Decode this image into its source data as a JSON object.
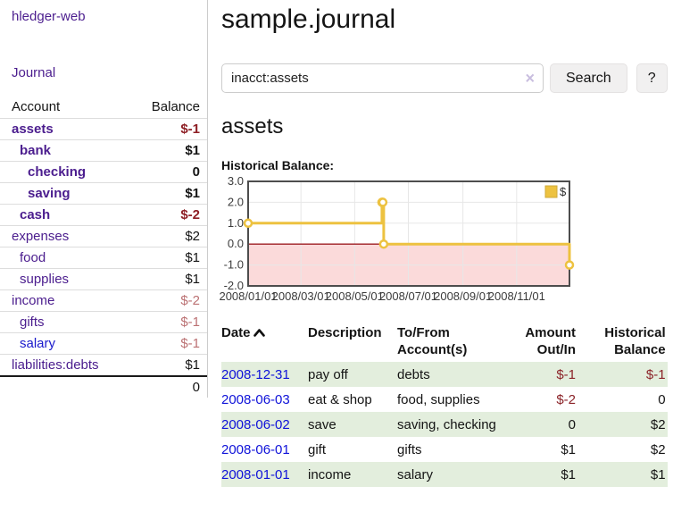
{
  "app_title": "hledger-web",
  "sidebar": {
    "journal_link": "Journal",
    "accounts": {
      "headers": {
        "account": "Account",
        "balance": "Balance"
      },
      "rows": [
        {
          "name": "assets",
          "balance": "$-1",
          "level": 1,
          "bold": true,
          "neg": "strong"
        },
        {
          "name": "bank",
          "balance": "$1",
          "level": 2,
          "bold": true,
          "neg": "none"
        },
        {
          "name": "checking",
          "balance": "0",
          "level": 3,
          "bold": true,
          "neg": "none"
        },
        {
          "name": "saving",
          "balance": "$1",
          "level": 3,
          "bold": true,
          "neg": "none"
        },
        {
          "name": "cash",
          "balance": "$-2",
          "level": 2,
          "bold": true,
          "neg": "strong"
        },
        {
          "name": "expenses",
          "balance": "$2",
          "level": 1,
          "bold": false,
          "neg": "none"
        },
        {
          "name": "food",
          "balance": "$1",
          "level": 2,
          "bold": false,
          "neg": "none"
        },
        {
          "name": "supplies",
          "balance": "$1",
          "level": 2,
          "bold": false,
          "neg": "none"
        },
        {
          "name": "income",
          "balance": "$-2",
          "level": 1,
          "bold": false,
          "neg": "dim"
        },
        {
          "name": "gifts",
          "balance": "$-1",
          "level": 2,
          "bold": false,
          "neg": "dim"
        },
        {
          "name": "salary",
          "balance": "$-1",
          "level": 2,
          "bold": false,
          "neg": "dim",
          "unvisited": true
        },
        {
          "name": "liabilities:debts",
          "balance": "$1",
          "level": 1,
          "bold": false,
          "neg": "none"
        }
      ],
      "total": "0"
    }
  },
  "main": {
    "title": "sample.journal",
    "search": {
      "value": "inacct:assets",
      "clear_icon": "×",
      "search_button": "Search",
      "help_button": "?"
    },
    "account_heading": "assets",
    "chart_title": "Historical Balance:"
  },
  "chart_data": {
    "type": "line",
    "title": "Historical Balance",
    "step": true,
    "series": [
      {
        "name": "$",
        "color": "#edc240",
        "points": [
          {
            "date": "2008-01-01",
            "day": 0,
            "value": 1
          },
          {
            "date": "2008-06-01",
            "day": 152,
            "value": 2
          },
          {
            "date": "2008-06-02",
            "day": 153,
            "value": 2
          },
          {
            "date": "2008-06-03",
            "day": 154,
            "value": 0
          },
          {
            "date": "2008-12-31",
            "day": 365,
            "value": -1
          }
        ]
      }
    ],
    "x_ticks": [
      {
        "label": "2008/01/01",
        "day": 0
      },
      {
        "label": "2008/03/01",
        "day": 60
      },
      {
        "label": "2008/05/01",
        "day": 121
      },
      {
        "label": "2008/07/01",
        "day": 182
      },
      {
        "label": "2008/09/01",
        "day": 244
      },
      {
        "label": "2008/11/01",
        "day": 305
      }
    ],
    "x_range_days": [
      0,
      365
    ],
    "y_ticks": [
      3.0,
      2.0,
      1.0,
      0.0,
      -1.0,
      -2.0
    ],
    "ylim": [
      -2,
      3
    ],
    "grid": true,
    "legend": {
      "label": "$",
      "position": "top-right"
    },
    "negative_fill": "#fbdada",
    "zero_line_color": "#9d1c20",
    "gridline_color": "#e7e7e7",
    "border_color": "#4d4d4d"
  },
  "register": {
    "headers": {
      "date": "Date",
      "description": "Description",
      "accounts": "To/From Account(s)",
      "amount": "Amount Out/In",
      "balance": "Historical Balance"
    },
    "rows": [
      {
        "date": "2008-12-31",
        "description": "pay off",
        "accounts": "debts",
        "amount": "$-1",
        "amount_neg": true,
        "balance": "$-1",
        "balance_neg": true
      },
      {
        "date": "2008-06-03",
        "description": "eat & shop",
        "accounts": "food, supplies",
        "amount": "$-2",
        "amount_neg": true,
        "balance": "0",
        "balance_neg": false
      },
      {
        "date": "2008-06-02",
        "description": "save",
        "accounts": "saving, checking",
        "amount": "0",
        "amount_neg": false,
        "balance": "$2",
        "balance_neg": false
      },
      {
        "date": "2008-06-01",
        "description": "gift",
        "accounts": "gifts",
        "amount": "$1",
        "amount_neg": false,
        "balance": "$2",
        "balance_neg": false
      },
      {
        "date": "2008-01-01",
        "description": "income",
        "accounts": "salary",
        "amount": "$1",
        "amount_neg": false,
        "balance": "$1",
        "balance_neg": false
      }
    ]
  },
  "colors": {
    "accent_purple": "#4b1d8e",
    "link_blue": "#0f12d9",
    "negative_strong": "#8e1f25",
    "negative_dim": "#bb7173",
    "row_green": "#e3eedd",
    "chart_gold": "#edc240"
  }
}
